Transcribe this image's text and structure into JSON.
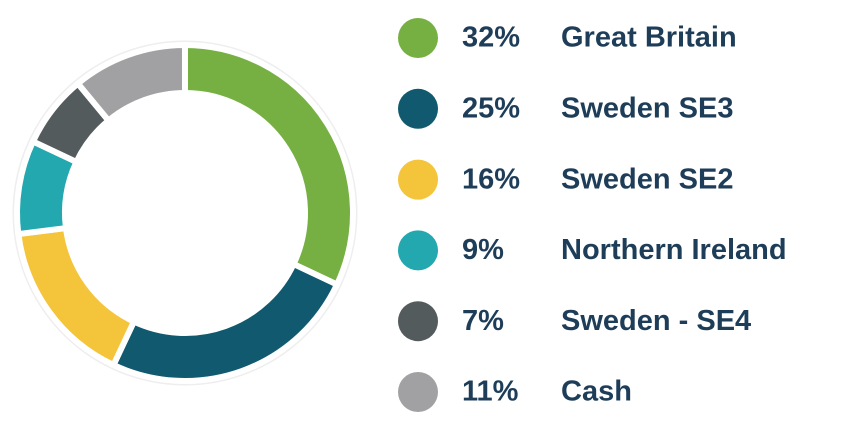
{
  "chart_data": {
    "type": "donut",
    "categories": [
      "Great Britain",
      "Sweden SE3",
      "Sweden SE2",
      "Northern Ireland",
      "Sweden - SE4",
      "Cash"
    ],
    "values": [
      32,
      25,
      16,
      9,
      7,
      11
    ],
    "value_labels": [
      "32%",
      "25%",
      "16%",
      "9%",
      "7%",
      "11%"
    ],
    "colors": [
      "#76b043",
      "#10596e",
      "#f4c43a",
      "#22a8ae",
      "#545b5d",
      "#a1a1a3"
    ]
  }
}
